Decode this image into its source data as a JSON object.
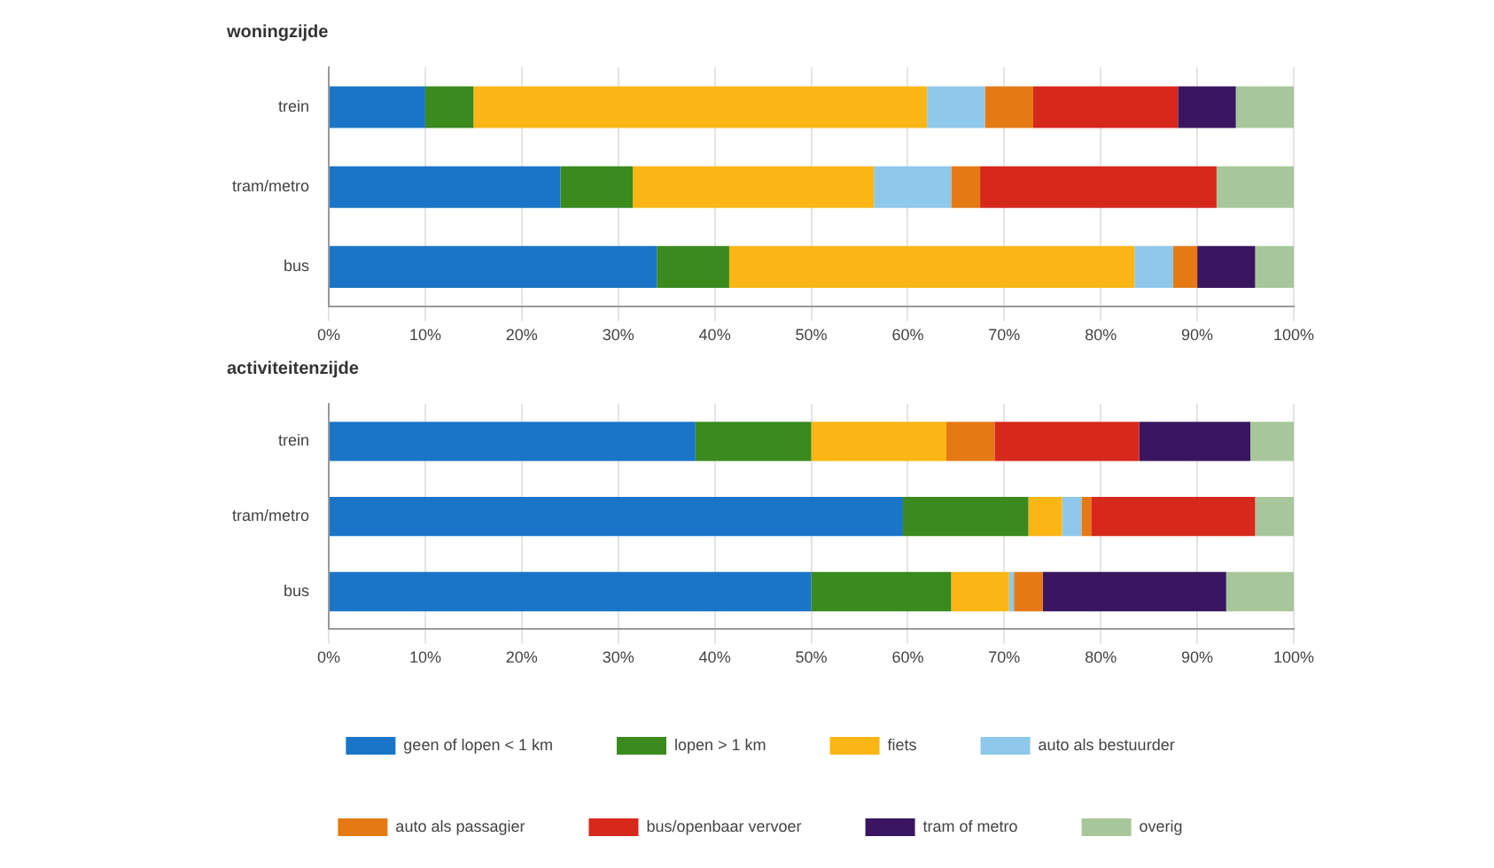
{
  "chart_data": [
    {
      "type": "bar",
      "orientation": "horizontal",
      "stacked": true,
      "title": "woningzijde",
      "categories": [
        "trein",
        "tram/metro",
        "bus"
      ],
      "xlim": [
        0,
        100
      ],
      "xticks": [
        {
          "value": 0,
          "label": "0%"
        },
        {
          "value": 10,
          "label": "10%"
        },
        {
          "value": 20,
          "label": "20%"
        },
        {
          "value": 30,
          "label": "30%"
        },
        {
          "value": 40,
          "label": "40%"
        },
        {
          "value": 50,
          "label": "50%"
        },
        {
          "value": 60,
          "label": "60%"
        },
        {
          "value": 70,
          "label": "70%"
        },
        {
          "value": 80,
          "label": "80%"
        },
        {
          "value": 90,
          "label": "90%"
        },
        {
          "value": 100,
          "label": "100%"
        }
      ],
      "grid": "x",
      "legend": false,
      "series": [
        {
          "color": "#1a75c8",
          "values": [
            10,
            24,
            34
          ]
        },
        {
          "color": "#3a8a1e",
          "values": [
            5,
            7.5,
            7.5
          ]
        },
        {
          "color": "#fbb615",
          "values": [
            47,
            25,
            42
          ]
        },
        {
          "color": "#8ec8ea",
          "values": [
            6,
            8,
            4
          ]
        },
        {
          "color": "#e57a14",
          "values": [
            5,
            3,
            2.5
          ]
        },
        {
          "color": "#d7281c",
          "values": [
            15,
            24.5,
            0
          ]
        },
        {
          "color": "#3a1660",
          "values": [
            6,
            0,
            6
          ]
        },
        {
          "color": "#a7c79a",
          "values": [
            6,
            8,
            4
          ]
        }
      ]
    },
    {
      "type": "bar",
      "orientation": "horizontal",
      "stacked": true,
      "title": "activiteitenzijde",
      "categories": [
        "trein",
        "tram/metro",
        "bus"
      ],
      "xlim": [
        0,
        100
      ],
      "xticks": [
        {
          "value": 0,
          "label": "0%"
        },
        {
          "value": 10,
          "label": "10%"
        },
        {
          "value": 20,
          "label": "20%"
        },
        {
          "value": 30,
          "label": "30%"
        },
        {
          "value": 40,
          "label": "40%"
        },
        {
          "value": 50,
          "label": "50%"
        },
        {
          "value": 60,
          "label": "60%"
        },
        {
          "value": 70,
          "label": "70%"
        },
        {
          "value": 80,
          "label": "80%"
        },
        {
          "value": 90,
          "label": "90%"
        },
        {
          "value": 100,
          "label": "100%"
        }
      ],
      "grid": "x",
      "legend": "bottom",
      "series": [
        {
          "name": "geen of lopen < 1 km",
          "color": "#1a75c8",
          "values": [
            38,
            59.5,
            50
          ]
        },
        {
          "name": "lopen > 1 km",
          "color": "#3a8a1e",
          "values": [
            12,
            13,
            14.5
          ]
        },
        {
          "name": "fiets",
          "color": "#fbb615",
          "values": [
            14,
            3.5,
            6
          ]
        },
        {
          "name": "auto als bestuurder",
          "color": "#8ec8ea",
          "values": [
            0,
            2,
            0.5
          ]
        },
        {
          "name": "auto als passagier",
          "color": "#e57a14",
          "values": [
            5,
            1,
            3
          ]
        },
        {
          "name": "bus/openbaar vervoer",
          "color": "#d7281c",
          "values": [
            15,
            17,
            0
          ]
        },
        {
          "name": "tram of metro",
          "color": "#3a1660",
          "values": [
            11.5,
            0,
            19
          ]
        },
        {
          "name": "overig",
          "color": "#a7c79a",
          "values": [
            4.5,
            4,
            7
          ]
        }
      ]
    }
  ]
}
